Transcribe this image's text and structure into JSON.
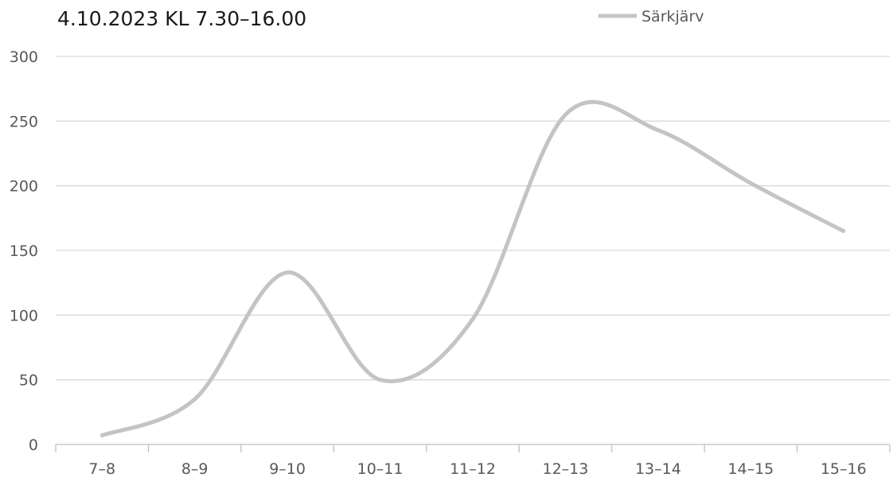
{
  "chart_data": {
    "type": "line",
    "title": "4.10.2023 KL 7.30–16.00",
    "xlabel": "",
    "ylabel": "",
    "categories": [
      "7–8",
      "8–9",
      "9–10",
      "10–11",
      "11–12",
      "12–13",
      "13–14",
      "14–15",
      "15–16"
    ],
    "series": [
      {
        "name": "Särkjärv",
        "values": [
          7,
          35,
          133,
          50,
          97,
          255,
          243,
          202,
          165
        ],
        "color": "#c4c4c4"
      }
    ],
    "ylim": [
      0,
      300
    ],
    "yticks": [
      0,
      50,
      100,
      150,
      200,
      250,
      300
    ],
    "grid": true,
    "legend_position": "top-right",
    "smooth": true
  }
}
